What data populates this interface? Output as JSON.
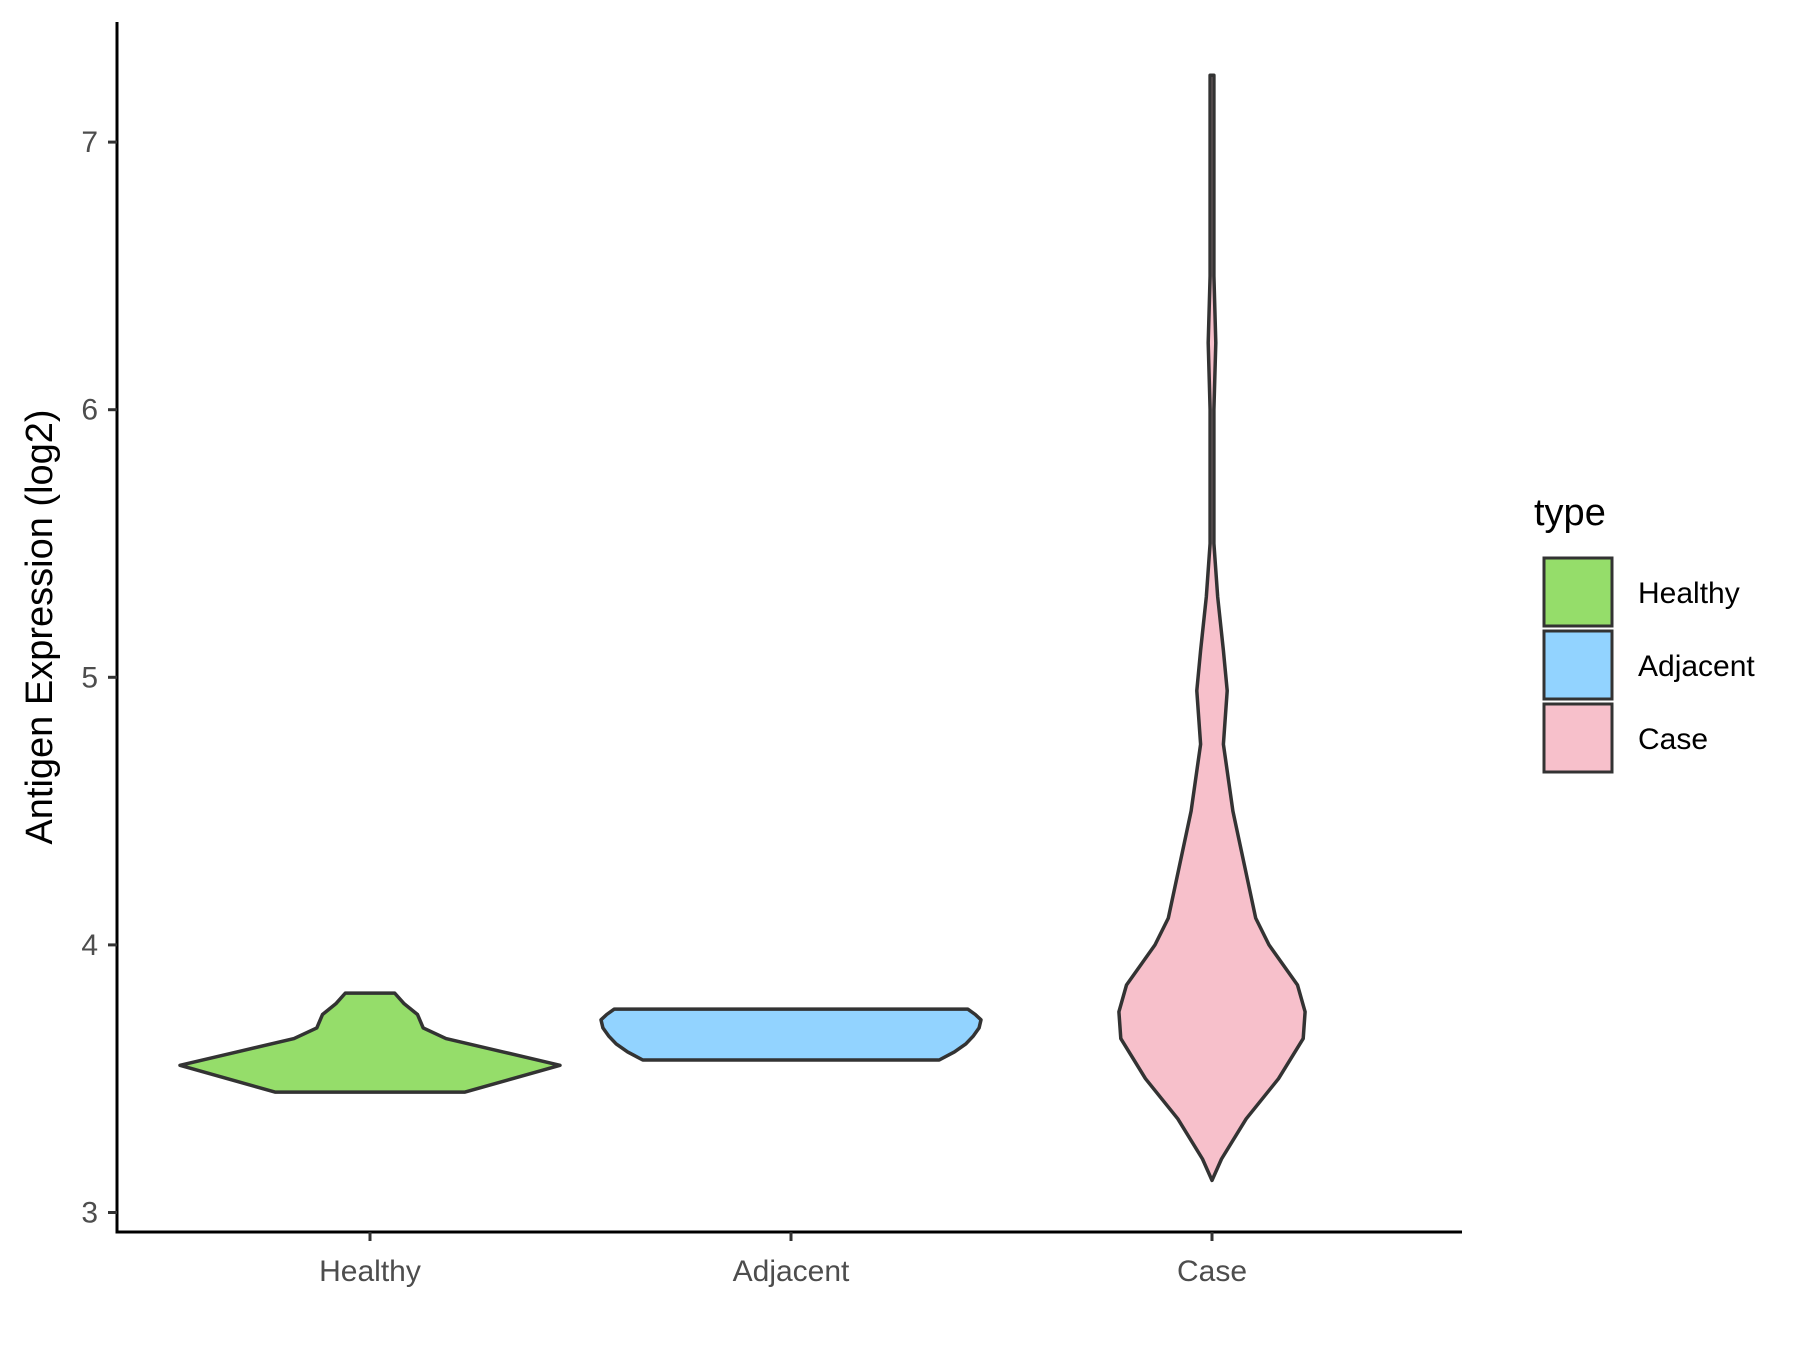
{
  "chart_data": {
    "type": "violin",
    "title": "",
    "xlabel": "",
    "ylabel": "Antigen Expression (log2)",
    "ylim": [
      2.9,
      7.45
    ],
    "yticks": [
      "3",
      "4",
      "5",
      "6",
      "7"
    ],
    "categories": [
      "Healthy",
      "Adjacent",
      "Case"
    ],
    "legend": {
      "title": "type",
      "position": "right",
      "entries": [
        "Healthy",
        "Adjacent",
        "Case"
      ]
    },
    "colors": {
      "Healthy": "#95DD6A",
      "Adjacent": "#92D3FF",
      "Case": "#F7C0CB",
      "outline": "#333333"
    },
    "series": [
      {
        "category": "Healthy",
        "min": 3.45,
        "max": 3.82,
        "density": [
          [
            3.45,
            0.5
          ],
          [
            3.5,
            0.75
          ],
          [
            3.55,
            1.0
          ],
          [
            3.6,
            0.7
          ],
          [
            3.65,
            0.4
          ],
          [
            3.69,
            0.28
          ],
          [
            3.74,
            0.25
          ],
          [
            3.78,
            0.18
          ],
          [
            3.82,
            0.13
          ]
        ]
      },
      {
        "category": "Adjacent",
        "min": 3.57,
        "max": 3.76,
        "density": [
          [
            3.57,
            0.78
          ],
          [
            3.6,
            0.86
          ],
          [
            3.63,
            0.92
          ],
          [
            3.66,
            0.96
          ],
          [
            3.69,
            0.99
          ],
          [
            3.72,
            1.0
          ],
          [
            3.74,
            0.97
          ],
          [
            3.76,
            0.93
          ]
        ]
      },
      {
        "category": "Case",
        "min": 3.12,
        "max": 7.25,
        "density": [
          [
            3.12,
            0.0
          ],
          [
            3.2,
            0.05
          ],
          [
            3.35,
            0.18
          ],
          [
            3.5,
            0.35
          ],
          [
            3.65,
            0.48
          ],
          [
            3.75,
            0.49
          ],
          [
            3.85,
            0.45
          ],
          [
            4.0,
            0.3
          ],
          [
            4.1,
            0.23
          ],
          [
            4.3,
            0.17
          ],
          [
            4.5,
            0.11
          ],
          [
            4.75,
            0.06
          ],
          [
            4.95,
            0.08
          ],
          [
            5.1,
            0.06
          ],
          [
            5.3,
            0.03
          ],
          [
            5.5,
            0.01
          ],
          [
            6.0,
            0.01
          ],
          [
            6.25,
            0.02
          ],
          [
            6.5,
            0.01
          ],
          [
            7.0,
            0.01
          ],
          [
            7.25,
            0.01
          ]
        ]
      }
    ]
  }
}
